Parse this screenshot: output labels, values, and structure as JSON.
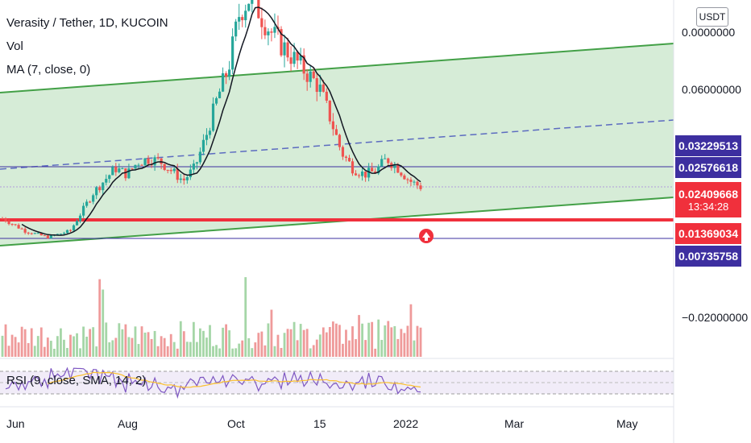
{
  "legend": {
    "title": "Verasity / Tether, 1D, KUCOIN",
    "vol": "Vol",
    "ma": "MA (7, close, 0)",
    "rsi": "RSI (9, close, SMA, 14, 2)"
  },
  "currency": "USDT",
  "price_axis": {
    "ticks": [
      "0.0000000",
      "0.06000000",
      "−0.02000000"
    ]
  },
  "time_axis": [
    "Jun",
    "Aug",
    "Oct",
    "15",
    "2022",
    "Mar",
    "May"
  ],
  "price_labels": [
    {
      "value": "0.03229513",
      "color": "#3d2fa0"
    },
    {
      "value": "0.02576618",
      "color": "#3d2fa0"
    },
    {
      "value": "0.02409668",
      "sub": "13:34:28",
      "color": "#f0303c"
    },
    {
      "value": "0.01369034",
      "color": "#f0303c"
    },
    {
      "value": "0.00735758",
      "color": "#3d2fa0"
    }
  ],
  "colors": {
    "up": "#26a69a",
    "down": "#ef5350",
    "channel_fill": "#c8e6c9",
    "channel_line": "#43a047",
    "midline": "#5c6bc0",
    "hline": "#3d2fa0",
    "support": "#f0303c",
    "ma": "#131722",
    "rsi": "#7e57c2",
    "rsi_ma": "#fbc02d"
  },
  "chart_data": {
    "type": "candlestick",
    "symbol": "Verasity / Tether",
    "interval": "1D",
    "exchange": "KUCOIN",
    "approx_close_series": [
      0.014,
      0.012,
      0.01,
      0.009,
      0.008,
      0.009,
      0.01,
      0.016,
      0.022,
      0.026,
      0.03,
      0.028,
      0.032,
      0.033,
      0.032,
      0.029,
      0.026,
      0.03,
      0.04,
      0.052,
      0.062,
      0.08,
      0.085,
      0.078,
      0.072,
      0.068,
      0.064,
      0.06,
      0.056,
      0.046,
      0.035,
      0.03,
      0.028,
      0.029,
      0.033,
      0.03,
      0.026,
      0.024
    ],
    "horizontal_levels": [
      0.03229513,
      0.02576618,
      0.01369034,
      0.00735758
    ],
    "last_price": 0.02409668,
    "countdown": "13:34:28",
    "indicators": [
      "Vol",
      "MA (7, close, 0)",
      "RSI (9, close, SMA, 14, 2)"
    ]
  }
}
